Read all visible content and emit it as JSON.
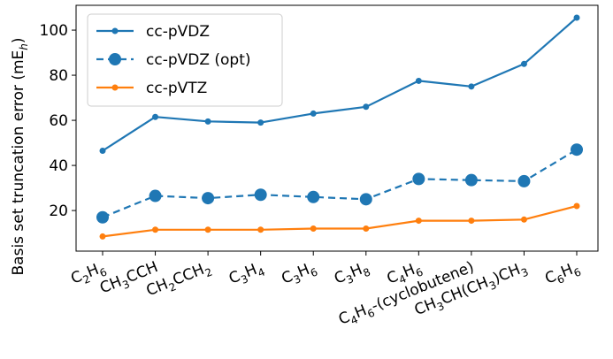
{
  "chart_data": {
    "type": "line",
    "ylabel_main": "Basis set truncation error (mE",
    "ylabel_sub": "h",
    "ylabel_end": ")",
    "ylim": [
      2,
      111
    ],
    "yticks": [
      20,
      40,
      60,
      80,
      100
    ],
    "grid": false,
    "legend_position": "top-left",
    "categories": [
      [
        {
          "t": "C"
        },
        {
          "t": "2",
          "s": true
        },
        {
          "t": "H"
        },
        {
          "t": "6",
          "s": true
        }
      ],
      [
        {
          "t": "CH"
        },
        {
          "t": "3",
          "s": true
        },
        {
          "t": "CCH"
        }
      ],
      [
        {
          "t": "CH"
        },
        {
          "t": "2",
          "s": true
        },
        {
          "t": "CCH"
        },
        {
          "t": "2",
          "s": true
        }
      ],
      [
        {
          "t": "C"
        },
        {
          "t": "3",
          "s": true
        },
        {
          "t": "H"
        },
        {
          "t": "4",
          "s": true
        }
      ],
      [
        {
          "t": "C"
        },
        {
          "t": "3",
          "s": true
        },
        {
          "t": "H"
        },
        {
          "t": "6",
          "s": true
        }
      ],
      [
        {
          "t": "C"
        },
        {
          "t": "3",
          "s": true
        },
        {
          "t": "H"
        },
        {
          "t": "8",
          "s": true
        }
      ],
      [
        {
          "t": "C"
        },
        {
          "t": "4",
          "s": true
        },
        {
          "t": "H"
        },
        {
          "t": "6",
          "s": true
        }
      ],
      [
        {
          "t": "C"
        },
        {
          "t": "4",
          "s": true
        },
        {
          "t": "H"
        },
        {
          "t": "6",
          "s": true
        },
        {
          "t": "-(cyclobutene)"
        }
      ],
      [
        {
          "t": "CH"
        },
        {
          "t": "3",
          "s": true
        },
        {
          "t": "CH(CH"
        },
        {
          "t": "3",
          "s": true
        },
        {
          "t": ")CH"
        },
        {
          "t": "3",
          "s": true
        }
      ],
      [
        {
          "t": "C"
        },
        {
          "t": "6",
          "s": true
        },
        {
          "t": "H"
        },
        {
          "t": "6",
          "s": true
        }
      ]
    ],
    "series": [
      {
        "name": "cc-pVDZ",
        "color": "#1f77b4",
        "style": "solid",
        "marker_r": 3.5,
        "values": [
          46.5,
          61.5,
          59.5,
          59,
          63,
          66,
          77.5,
          75,
          85,
          105.5
        ]
      },
      {
        "name": "cc-pVDZ (opt)",
        "color": "#1f77b4",
        "style": "dashed",
        "marker_r": 7,
        "values": [
          17,
          26.5,
          25.5,
          27,
          26,
          25,
          34,
          33.5,
          33,
          47
        ]
      },
      {
        "name": "cc-pVTZ",
        "color": "#ff7f0e",
        "style": "solid",
        "marker_r": 3.5,
        "values": [
          8.5,
          11.5,
          11.5,
          11.5,
          12,
          12,
          15.5,
          15.5,
          16,
          22
        ]
      }
    ]
  }
}
